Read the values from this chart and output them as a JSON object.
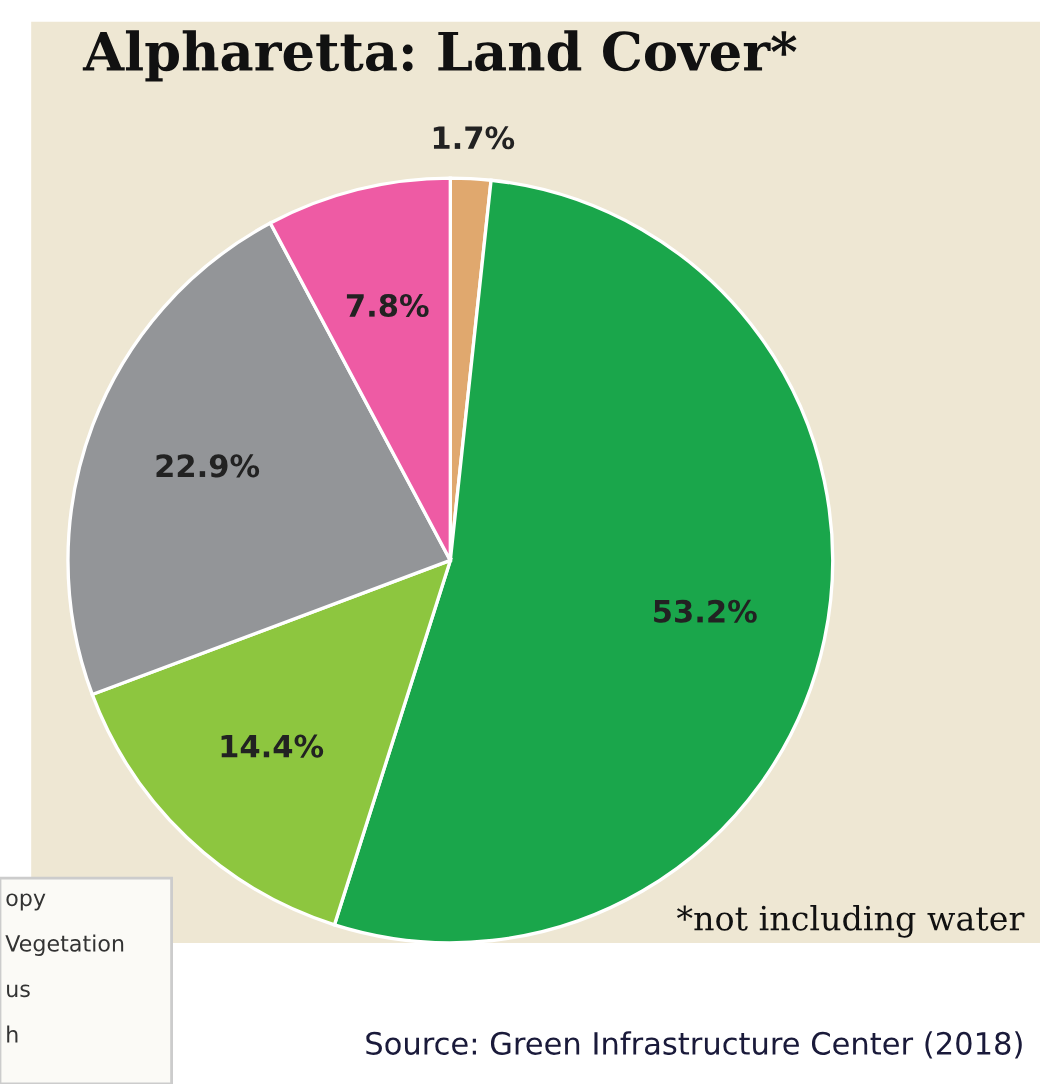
{
  "chart_data": {
    "type": "pie",
    "title": "Alpharetta: Land Cover*",
    "categories": [
      null,
      null,
      null,
      null,
      null
    ],
    "values": [
      1.7,
      53.2,
      14.4,
      22.9,
      7.8
    ],
    "colors": [
      "#e0a86e",
      "#1aa64b",
      "#8dc63f",
      "#939598",
      "#ee5ba4"
    ],
    "value_labels": [
      "1.7%",
      "53.2%",
      "14.4%",
      "22.9%",
      "7.8%"
    ],
    "annotations": [
      "*not including water",
      "Source: Green Infrastructure Center (2018)",
      "opy",
      "Vegetation",
      "us",
      "h"
    ]
  }
}
